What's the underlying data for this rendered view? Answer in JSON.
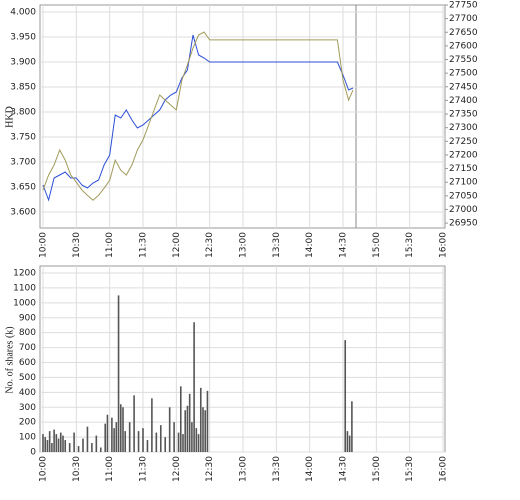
{
  "chart_data": [
    {
      "type": "line",
      "y_label": "HKD",
      "x": [
        "10:00",
        "10:05",
        "10:10",
        "10:15",
        "10:20",
        "10:25",
        "10:30",
        "10:35",
        "10:40",
        "10:45",
        "10:50",
        "10:55",
        "11:00",
        "11:05",
        "11:10",
        "11:15",
        "11:20",
        "11:25",
        "11:30",
        "11:35",
        "11:40",
        "11:45",
        "11:50",
        "11:55",
        "12:00",
        "12:05",
        "12:10",
        "12:15",
        "12:20",
        "12:25",
        "12:30",
        "14:25",
        "14:30",
        "14:35",
        "14:39"
      ],
      "series": [
        {
          "color": "#2b4fd6",
          "values": [
            3.654,
            3.624,
            3.668,
            3.674,
            3.68,
            3.668,
            3.668,
            3.654,
            3.648,
            3.658,
            3.664,
            3.694,
            3.714,
            3.794,
            3.788,
            3.804,
            3.784,
            3.768,
            3.774,
            3.784,
            3.794,
            3.804,
            3.824,
            3.834,
            3.84,
            3.868,
            3.884,
            3.954,
            3.914,
            3.908,
            3.9,
            3.9,
            3.874,
            3.844,
            3.848
          ]
        },
        {
          "color": "#a09a5a",
          "axis": "y2",
          "values": [
            27071,
            27126,
            27163,
            27218,
            27181,
            27126,
            27100,
            27071,
            27052,
            27034,
            27052,
            27078,
            27107,
            27181,
            27144,
            27126,
            27163,
            27218,
            27255,
            27310,
            27365,
            27420,
            27401,
            27383,
            27365,
            27475,
            27530,
            27592,
            27640,
            27651,
            27622,
            27622,
            27475,
            27401,
            27438
          ]
        }
      ],
      "xlim": [
        "10:00",
        "16:00"
      ],
      "xticks": [
        "10:00",
        "10:30",
        "11:00",
        "11:30",
        "12:00",
        "12:30",
        "13:00",
        "13:30",
        "14:00",
        "14:30",
        "15:00",
        "15:30",
        "16:00"
      ],
      "ylim": [
        3.568,
        4.014
      ],
      "yticks": [
        {
          "value": 3.6,
          "label": "3.600"
        },
        {
          "value": 3.65,
          "label": "3.650"
        },
        {
          "value": 3.7,
          "label": "3.700"
        },
        {
          "value": 3.75,
          "label": "3.750"
        },
        {
          "value": 3.8,
          "label": "3.800"
        },
        {
          "value": 3.85,
          "label": "3.850"
        },
        {
          "value": 3.9,
          "label": "3.900"
        },
        {
          "value": 3.95,
          "label": "3.950"
        },
        {
          "value": 4.0,
          "label": "4.000"
        }
      ],
      "y2lim": [
        26932,
        27750
      ],
      "y2ticks": [
        26950,
        27000,
        27050,
        27100,
        27150,
        27200,
        27250,
        27300,
        27350,
        27400,
        27450,
        27500,
        27550,
        27600,
        27650,
        27700,
        27750
      ],
      "grid": true
    },
    {
      "type": "bar",
      "y_label": "No. of shares (k)",
      "color": "#555555",
      "x": [
        "10:00",
        "10:02",
        "10:04",
        "10:06",
        "10:08",
        "10:10",
        "10:12",
        "10:14",
        "10:16",
        "10:18",
        "10:20",
        "10:24",
        "10:28",
        "10:32",
        "10:36",
        "10:40",
        "10:44",
        "10:48",
        "10:52",
        "10:56",
        "10:58",
        "11:02",
        "11:04",
        "11:06",
        "11:08",
        "11:10",
        "11:12",
        "11:14",
        "11:18",
        "11:22",
        "11:26",
        "11:30",
        "11:34",
        "11:38",
        "11:42",
        "11:46",
        "11:50",
        "11:54",
        "11:58",
        "12:02",
        "12:04",
        "12:06",
        "12:08",
        "12:10",
        "12:12",
        "12:14",
        "12:16",
        "12:18",
        "12:20",
        "12:22",
        "12:24",
        "12:26",
        "12:28",
        "14:32",
        "14:34",
        "14:36",
        "14:38"
      ],
      "values": [
        120,
        100,
        80,
        140,
        60,
        150,
        120,
        90,
        130,
        110,
        80,
        60,
        130,
        40,
        90,
        170,
        60,
        110,
        30,
        190,
        250,
        230,
        160,
        200,
        1050,
        320,
        300,
        140,
        200,
        380,
        140,
        160,
        80,
        360,
        130,
        180,
        100,
        300,
        200,
        130,
        440,
        120,
        280,
        310,
        390,
        200,
        870,
        160,
        120,
        430,
        300,
        280,
        410,
        750,
        140,
        110,
        340
      ],
      "xlim": [
        "10:00",
        "16:00"
      ],
      "xticks": [
        "10:00",
        "10:30",
        "11:00",
        "11:30",
        "12:00",
        "12:30",
        "13:00",
        "13:30",
        "14:00",
        "14:30",
        "15:00",
        "15:30",
        "16:00"
      ],
      "ylim": [
        0,
        1247
      ],
      "yticks": [
        0,
        100,
        200,
        300,
        400,
        500,
        600,
        700,
        800,
        900,
        1000,
        1100,
        1200
      ],
      "grid": true
    }
  ]
}
